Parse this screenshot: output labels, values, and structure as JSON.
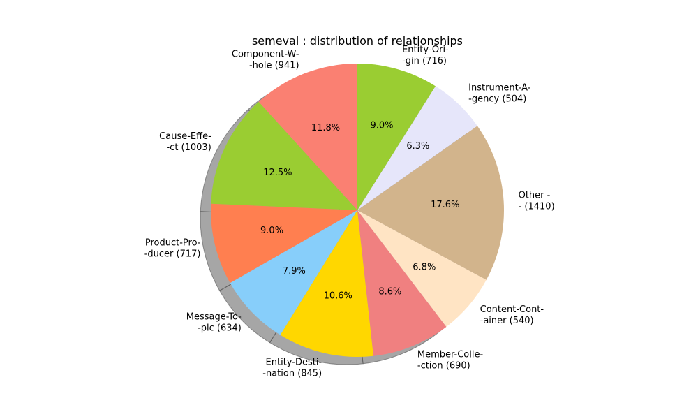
{
  "chart_data": {
    "type": "pie",
    "title": "semeval : distribution of relationships",
    "shadow": true,
    "start_angle_deg": 90,
    "direction": "counterclockwise",
    "slices": [
      {
        "label_line1": "Component-W-",
        "label_line2": "-hole  (941)",
        "value": 941,
        "pct_label": "11.8%",
        "color": "#fa8072"
      },
      {
        "label_line1": "Cause-Effe-",
        "label_line2": "-ct  (1003)",
        "value": 1003,
        "pct_label": "12.5%",
        "color": "#9acd32"
      },
      {
        "label_line1": "Product-Pro-",
        "label_line2": "-ducer  (717)",
        "value": 717,
        "pct_label": "9.0%",
        "color": "#ff7f50"
      },
      {
        "label_line1": "Message-To-",
        "label_line2": "-pic  (634)",
        "value": 634,
        "pct_label": "7.9%",
        "color": "#87cefa"
      },
      {
        "label_line1": "Entity-Desti-",
        "label_line2": "-nation  (845)",
        "value": 845,
        "pct_label": "10.6%",
        "color": "#ffd700"
      },
      {
        "label_line1": "Member-Colle-",
        "label_line2": "-ction  (690)",
        "value": 690,
        "pct_label": "8.6%",
        "color": "#f08080"
      },
      {
        "label_line1": "Content-Cont-",
        "label_line2": "-ainer  (540)",
        "value": 540,
        "pct_label": "6.8%",
        "color": "#ffe4c4"
      },
      {
        "label_line1": "Other -",
        "label_line2": "- (1410)",
        "value": 1410,
        "pct_label": "17.6%",
        "color": "#d2b48c"
      },
      {
        "label_line1": "Instrument-A-",
        "label_line2": "-gency  (504)",
        "value": 504,
        "pct_label": "6.3%",
        "color": "#e6e6fa"
      },
      {
        "label_line1": "Entity-Ori-",
        "label_line2": "-gin  (716)",
        "value": 716,
        "pct_label": "9.0%",
        "color": "#9acd32"
      }
    ]
  }
}
